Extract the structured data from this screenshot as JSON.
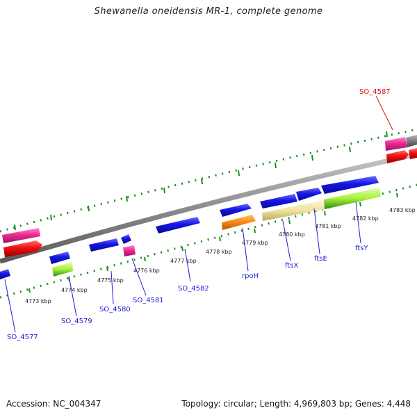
{
  "title": "Shewanella oneidensis MR-1, complete genome",
  "footer": {
    "accession": "Accession: NC_004347",
    "meta": "Topology: circular; Length: 4,969,803 bp; Genes: 4,448"
  },
  "colors": {
    "backbone": "#8c8c8c",
    "tick": "#1e8a1e",
    "label_blue": "#1a1ad6",
    "label_red": "#e01010",
    "blue": "#1515e6",
    "red": "#ee0f0f",
    "pink": "#ee2a92",
    "orange": "#ff8a14",
    "lightgreen": "#a8f03a",
    "khaki": "#efe2a0",
    "gray": "#7a7a7a"
  },
  "ticks": [
    {
      "label": "4773 kbp"
    },
    {
      "label": "4774 kbp"
    },
    {
      "label": "4775 kbp"
    },
    {
      "label": "4776 kbp"
    },
    {
      "label": "4777 kbp"
    },
    {
      "label": "4778 kbp"
    },
    {
      "label": "4779 kbp"
    },
    {
      "label": "4780 kbp"
    },
    {
      "label": "4781 kbp"
    },
    {
      "label": "4782 kbp"
    },
    {
      "label": "4783 kbp"
    }
  ],
  "gene_labels": [
    {
      "name": "SO_4577",
      "color": "blue"
    },
    {
      "name": "SO_4579",
      "color": "blue"
    },
    {
      "name": "SO_4580",
      "color": "blue"
    },
    {
      "name": "SO_4581",
      "color": "blue"
    },
    {
      "name": "SO_4582",
      "color": "blue"
    },
    {
      "name": "rpoH",
      "color": "blue"
    },
    {
      "name": "ftsX",
      "color": "blue"
    },
    {
      "name": "ftsE",
      "color": "blue"
    },
    {
      "name": "ftsY",
      "color": "blue"
    },
    {
      "name": "SO_4587",
      "color": "red"
    }
  ]
}
